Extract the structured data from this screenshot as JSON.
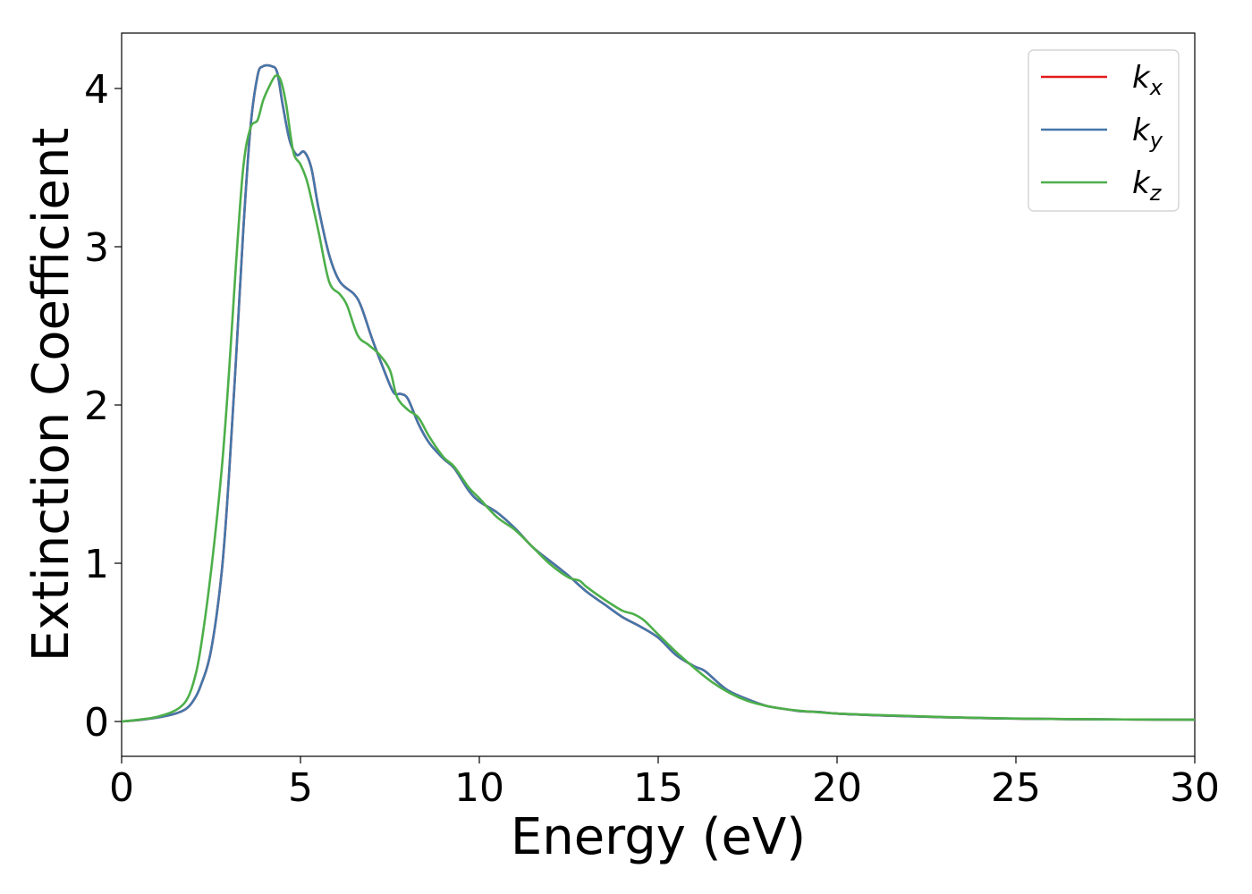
{
  "chart_data": {
    "type": "line",
    "xlabel": "Energy (eV)",
    "ylabel": "Extinction Coefficient",
    "xlim": [
      0,
      30
    ],
    "ylim": [
      -0.22,
      4.35
    ],
    "xticks": [
      0,
      5,
      10,
      15,
      20,
      25,
      30
    ],
    "xtick_labels": [
      "0",
      "5",
      "10",
      "15",
      "20",
      "25",
      "30"
    ],
    "yticks": [
      0,
      1,
      2,
      3,
      4
    ],
    "ytick_labels": [
      "0",
      "1",
      "2",
      "3",
      "4"
    ],
    "grid": false,
    "legend_position": "top-right",
    "series": [
      {
        "name": "k",
        "subscript": "x",
        "color": "#e41a1c",
        "points": [
          [
            0,
            0
          ],
          [
            0.5,
            0.01
          ],
          [
            1,
            0.025
          ],
          [
            1.5,
            0.05
          ],
          [
            1.8,
            0.08
          ],
          [
            2,
            0.13
          ],
          [
            2.2,
            0.22
          ],
          [
            2.5,
            0.45
          ],
          [
            2.8,
            0.95
          ],
          [
            3,
            1.55
          ],
          [
            3.2,
            2.3
          ],
          [
            3.4,
            3.1
          ],
          [
            3.6,
            3.75
          ],
          [
            3.8,
            4.08
          ],
          [
            3.95,
            4.14
          ],
          [
            4.2,
            4.14
          ],
          [
            4.35,
            4.1
          ],
          [
            4.5,
            3.9
          ],
          [
            4.7,
            3.67
          ],
          [
            4.9,
            3.58
          ],
          [
            5.1,
            3.6
          ],
          [
            5.3,
            3.5
          ],
          [
            5.5,
            3.25
          ],
          [
            5.8,
            2.95
          ],
          [
            6.1,
            2.78
          ],
          [
            6.5,
            2.7
          ],
          [
            6.7,
            2.62
          ],
          [
            7,
            2.42
          ],
          [
            7.3,
            2.24
          ],
          [
            7.6,
            2.08
          ],
          [
            7.8,
            2.07
          ],
          [
            8,
            2.04
          ],
          [
            8.3,
            1.88
          ],
          [
            8.6,
            1.76
          ],
          [
            9,
            1.66
          ],
          [
            9.3,
            1.6
          ],
          [
            9.7,
            1.46
          ],
          [
            10,
            1.39
          ],
          [
            10.5,
            1.32
          ],
          [
            11,
            1.22
          ],
          [
            11.5,
            1.1
          ],
          [
            12,
            1.01
          ],
          [
            12.5,
            0.92
          ],
          [
            13,
            0.82
          ],
          [
            13.5,
            0.74
          ],
          [
            14,
            0.66
          ],
          [
            14.5,
            0.6
          ],
          [
            15,
            0.53
          ],
          [
            15.5,
            0.42
          ],
          [
            16,
            0.35
          ],
          [
            16.3,
            0.32
          ],
          [
            16.7,
            0.24
          ],
          [
            17,
            0.19
          ],
          [
            17.5,
            0.14
          ],
          [
            18,
            0.1
          ],
          [
            18.5,
            0.08
          ],
          [
            19,
            0.065
          ],
          [
            19.5,
            0.06
          ],
          [
            20,
            0.05
          ],
          [
            21,
            0.04
          ],
          [
            22,
            0.033
          ],
          [
            23,
            0.027
          ],
          [
            24,
            0.022
          ],
          [
            25,
            0.018
          ],
          [
            26,
            0.016
          ],
          [
            27,
            0.014
          ],
          [
            28,
            0.013
          ],
          [
            29,
            0.012
          ],
          [
            30,
            0.011
          ]
        ]
      },
      {
        "name": "k",
        "subscript": "y",
        "color": "#4477aa",
        "points": [
          [
            0,
            0
          ],
          [
            0.5,
            0.01
          ],
          [
            1,
            0.025
          ],
          [
            1.5,
            0.05
          ],
          [
            1.8,
            0.08
          ],
          [
            2,
            0.13
          ],
          [
            2.2,
            0.22
          ],
          [
            2.5,
            0.45
          ],
          [
            2.8,
            0.95
          ],
          [
            3,
            1.55
          ],
          [
            3.2,
            2.3
          ],
          [
            3.4,
            3.1
          ],
          [
            3.6,
            3.75
          ],
          [
            3.8,
            4.08
          ],
          [
            3.95,
            4.14
          ],
          [
            4.2,
            4.14
          ],
          [
            4.35,
            4.1
          ],
          [
            4.5,
            3.9
          ],
          [
            4.7,
            3.67
          ],
          [
            4.9,
            3.58
          ],
          [
            5.1,
            3.6
          ],
          [
            5.3,
            3.5
          ],
          [
            5.5,
            3.25
          ],
          [
            5.8,
            2.95
          ],
          [
            6.1,
            2.78
          ],
          [
            6.5,
            2.7
          ],
          [
            6.7,
            2.62
          ],
          [
            7,
            2.42
          ],
          [
            7.3,
            2.24
          ],
          [
            7.6,
            2.08
          ],
          [
            7.8,
            2.07
          ],
          [
            8,
            2.04
          ],
          [
            8.3,
            1.88
          ],
          [
            8.6,
            1.76
          ],
          [
            9,
            1.66
          ],
          [
            9.3,
            1.6
          ],
          [
            9.7,
            1.46
          ],
          [
            10,
            1.39
          ],
          [
            10.5,
            1.32
          ],
          [
            11,
            1.22
          ],
          [
            11.5,
            1.1
          ],
          [
            12,
            1.01
          ],
          [
            12.5,
            0.92
          ],
          [
            13,
            0.82
          ],
          [
            13.5,
            0.74
          ],
          [
            14,
            0.66
          ],
          [
            14.5,
            0.6
          ],
          [
            15,
            0.53
          ],
          [
            15.5,
            0.42
          ],
          [
            16,
            0.35
          ],
          [
            16.3,
            0.32
          ],
          [
            16.7,
            0.24
          ],
          [
            17,
            0.19
          ],
          [
            17.5,
            0.14
          ],
          [
            18,
            0.1
          ],
          [
            18.5,
            0.08
          ],
          [
            19,
            0.065
          ],
          [
            19.5,
            0.06
          ],
          [
            20,
            0.05
          ],
          [
            21,
            0.04
          ],
          [
            22,
            0.033
          ],
          [
            23,
            0.027
          ],
          [
            24,
            0.022
          ],
          [
            25,
            0.018
          ],
          [
            26,
            0.016
          ],
          [
            27,
            0.014
          ],
          [
            28,
            0.013
          ],
          [
            29,
            0.012
          ],
          [
            30,
            0.011
          ]
        ]
      },
      {
        "name": "k",
        "subscript": "z",
        "color": "#4daf4a",
        "points": [
          [
            0,
            0
          ],
          [
            0.5,
            0.012
          ],
          [
            1,
            0.03
          ],
          [
            1.5,
            0.07
          ],
          [
            1.8,
            0.13
          ],
          [
            2,
            0.24
          ],
          [
            2.2,
            0.45
          ],
          [
            2.5,
            0.95
          ],
          [
            2.8,
            1.6
          ],
          [
            3,
            2.2
          ],
          [
            3.2,
            2.9
          ],
          [
            3.4,
            3.5
          ],
          [
            3.6,
            3.75
          ],
          [
            3.8,
            3.8
          ],
          [
            3.95,
            3.92
          ],
          [
            4.1,
            4.0
          ],
          [
            4.3,
            4.08
          ],
          [
            4.45,
            4.05
          ],
          [
            4.6,
            3.9
          ],
          [
            4.8,
            3.6
          ],
          [
            5,
            3.52
          ],
          [
            5.2,
            3.4
          ],
          [
            5.5,
            3.1
          ],
          [
            5.8,
            2.78
          ],
          [
            6.1,
            2.7
          ],
          [
            6.3,
            2.63
          ],
          [
            6.6,
            2.44
          ],
          [
            6.9,
            2.38
          ],
          [
            7.2,
            2.32
          ],
          [
            7.5,
            2.22
          ],
          [
            7.7,
            2.05
          ],
          [
            8,
            1.97
          ],
          [
            8.3,
            1.92
          ],
          [
            8.6,
            1.8
          ],
          [
            9,
            1.67
          ],
          [
            9.3,
            1.61
          ],
          [
            9.7,
            1.48
          ],
          [
            10,
            1.41
          ],
          [
            10.5,
            1.29
          ],
          [
            11,
            1.21
          ],
          [
            11.5,
            1.1
          ],
          [
            12,
            0.99
          ],
          [
            12.5,
            0.91
          ],
          [
            12.8,
            0.89
          ],
          [
            13,
            0.85
          ],
          [
            13.5,
            0.77
          ],
          [
            14,
            0.7
          ],
          [
            14.3,
            0.68
          ],
          [
            14.6,
            0.64
          ],
          [
            15,
            0.55
          ],
          [
            15.5,
            0.44
          ],
          [
            16,
            0.34
          ],
          [
            16.5,
            0.25
          ],
          [
            17,
            0.18
          ],
          [
            17.5,
            0.13
          ],
          [
            18,
            0.1
          ],
          [
            18.5,
            0.08
          ],
          [
            19,
            0.067
          ],
          [
            19.5,
            0.058
          ],
          [
            20,
            0.05
          ],
          [
            21,
            0.042
          ],
          [
            22,
            0.035
          ],
          [
            23,
            0.028
          ],
          [
            24,
            0.023
          ],
          [
            25,
            0.019
          ],
          [
            26,
            0.016
          ],
          [
            27,
            0.015
          ],
          [
            28,
            0.013
          ],
          [
            29,
            0.012
          ],
          [
            30,
            0.011
          ]
        ]
      }
    ]
  }
}
